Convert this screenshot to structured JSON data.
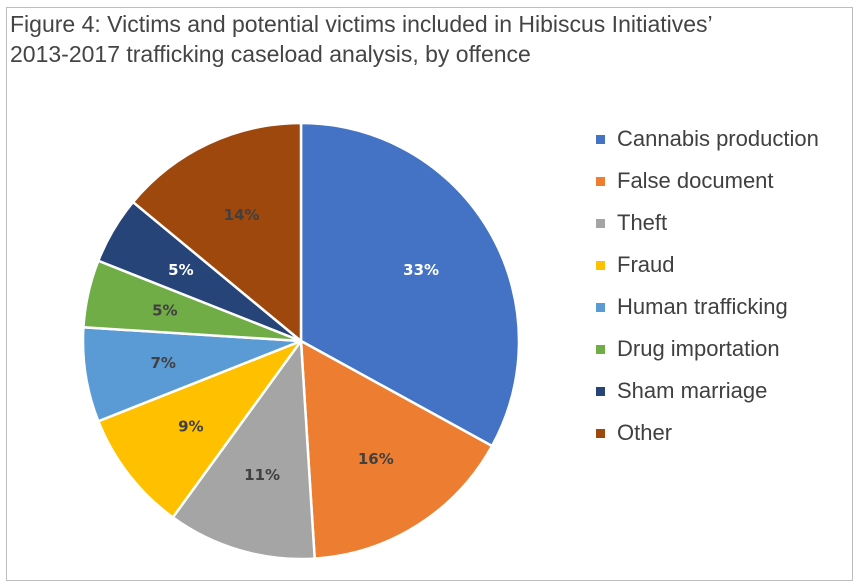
{
  "figure": {
    "title_line1": "Figure 4: Victims and potential victims included in Hibiscus Initiatives’",
    "title_line2": "2013-2017 trafficking caseload analysis, by offence"
  },
  "chart_data": {
    "type": "pie",
    "title": "Figure 4: Victims and potential victims included in Hibiscus Initiatives’ 2013-2017 trafficking caseload analysis, by offence",
    "start_angle": "12 o'clock",
    "direction": "clockwise",
    "legend_position": "right",
    "slices": [
      {
        "label": "Cannabis production",
        "value": 33,
        "display": "33%",
        "color": "#4472c4",
        "label_color": "#ffffff"
      },
      {
        "label": "False document",
        "value": 16,
        "display": "16%",
        "color": "#ed7d31",
        "label_color": "#404040"
      },
      {
        "label": "Theft",
        "value": 11,
        "display": "11%",
        "color": "#a5a5a5",
        "label_color": "#404040"
      },
      {
        "label": "Fraud",
        "value": 9,
        "display": "9%",
        "color": "#ffc000",
        "label_color": "#404040"
      },
      {
        "label": "Human trafficking",
        "value": 7,
        "display": "7%",
        "color": "#5b9bd5",
        "label_color": "#404040"
      },
      {
        "label": "Drug importation",
        "value": 5,
        "display": "5%",
        "color": "#70ad47",
        "label_color": "#404040"
      },
      {
        "label": "Sham marriage",
        "value": 5,
        "display": "5%",
        "color": "#264478",
        "label_color": "#ffffff"
      },
      {
        "label": "Other",
        "value": 14,
        "display": "14%",
        "color": "#9e480e",
        "label_color": "#404040"
      }
    ]
  }
}
